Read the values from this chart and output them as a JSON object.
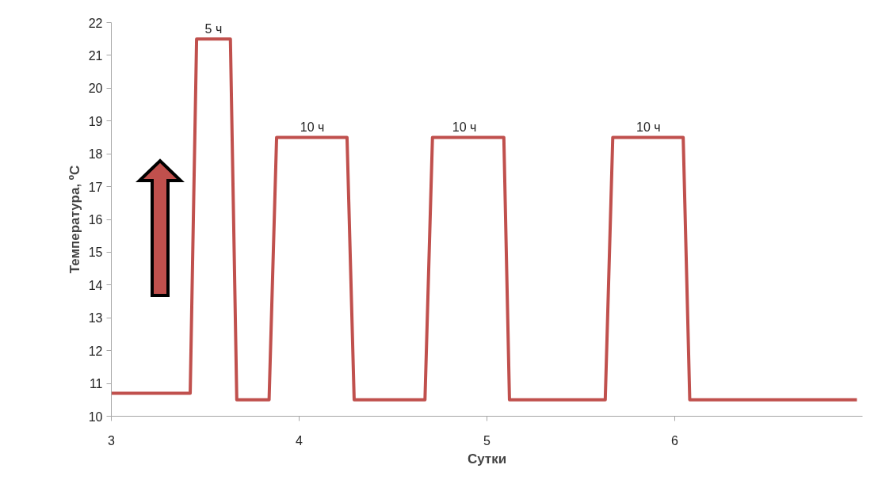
{
  "chart_data": {
    "type": "line",
    "xlabel": "Сутки",
    "ylabel": "Температура, ºC",
    "x": [
      3,
      3.42,
      3.454,
      3.634,
      3.668,
      3.84,
      3.88,
      4.255,
      4.293,
      4.67,
      4.71,
      5.09,
      5.12,
      5.63,
      5.67,
      6.045,
      6.08,
      6.97
    ],
    "series": [
      {
        "color": "#c0504d",
        "values": [
          10.7,
          10.7,
          21.5,
          21.5,
          10.5,
          10.5,
          18.5,
          18.5,
          10.5,
          10.5,
          18.5,
          18.5,
          10.5,
          10.5,
          18.5,
          18.5,
          10.5,
          10.5
        ]
      }
    ],
    "xlim": [
      3,
      7
    ],
    "xticks": [
      3,
      4,
      5,
      6
    ],
    "ylim": [
      10,
      22
    ],
    "yticks": [
      10,
      11,
      12,
      13,
      14,
      15,
      16,
      17,
      18,
      19,
      20,
      21,
      22
    ],
    "grid": false,
    "marker": "none",
    "line_style": "solid",
    "annotations": [
      {
        "text": "5 ч",
        "x": 3.544,
        "y": 21.5
      },
      {
        "text": "10 ч",
        "x": 4.07,
        "y": 18.5
      },
      {
        "text": "10 ч",
        "x": 4.88,
        "y": 18.5
      },
      {
        "text": "10 ч",
        "x": 5.86,
        "y": 18.5
      }
    ]
  }
}
